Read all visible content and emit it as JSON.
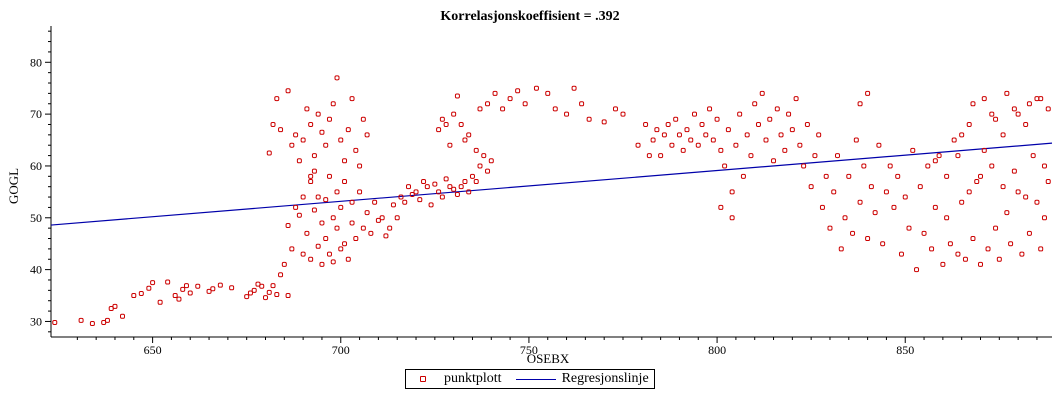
{
  "chart_data": {
    "type": "scatter",
    "title": "Korrelasjonskoeffisient =  .392",
    "xlabel": "OSEBX",
    "ylabel": "GOGL",
    "xlim": [
      623,
      889
    ],
    "ylim": [
      27,
      87
    ],
    "xticks": [
      650,
      700,
      750,
      800,
      850
    ],
    "yticks": [
      30,
      40,
      50,
      60,
      70,
      80
    ],
    "legend": "bottom",
    "colors": {
      "points": "#cc0000",
      "regression": "#0000aa"
    },
    "series": [
      {
        "name": "punktplott",
        "kind": "scatter",
        "points": [
          [
            624,
            29.8
          ],
          [
            631,
            30.2
          ],
          [
            634,
            29.6
          ],
          [
            637,
            29.8
          ],
          [
            638,
            30.2
          ],
          [
            639,
            32.5
          ],
          [
            640,
            32.9
          ],
          [
            642,
            31
          ],
          [
            645,
            35
          ],
          [
            647,
            35.4
          ],
          [
            649,
            36.4
          ],
          [
            650,
            37.5
          ],
          [
            652,
            33.7
          ],
          [
            654,
            37.6
          ],
          [
            656,
            35
          ],
          [
            657,
            34.3
          ],
          [
            658,
            36.2
          ],
          [
            659,
            36.9
          ],
          [
            660,
            35.5
          ],
          [
            662,
            36.8
          ],
          [
            665,
            35.8
          ],
          [
            666,
            36.3
          ],
          [
            668,
            37
          ],
          [
            671,
            36.5
          ],
          [
            675,
            34.8
          ],
          [
            676,
            35.5
          ],
          [
            677,
            36
          ],
          [
            678,
            37.2
          ],
          [
            679,
            36.8
          ],
          [
            680,
            34.6
          ],
          [
            681,
            35.6
          ],
          [
            682,
            36.9
          ],
          [
            683,
            35.2
          ],
          [
            684,
            39
          ],
          [
            685,
            41
          ],
          [
            686,
            35
          ],
          [
            686,
            48.5
          ],
          [
            687,
            44
          ],
          [
            688,
            52
          ],
          [
            689,
            50.5
          ],
          [
            690,
            43
          ],
          [
            690,
            54
          ],
          [
            691,
            47
          ],
          [
            692,
            42
          ],
          [
            692,
            57
          ],
          [
            693,
            51.5
          ],
          [
            693,
            59
          ],
          [
            694,
            54
          ],
          [
            694,
            44.5
          ],
          [
            695,
            49
          ],
          [
            695,
            41
          ],
          [
            696,
            46
          ],
          [
            696,
            53.5
          ],
          [
            697,
            43
          ],
          [
            697,
            58
          ],
          [
            698,
            50
          ],
          [
            698,
            41.5
          ],
          [
            699,
            55
          ],
          [
            699,
            48
          ],
          [
            700,
            44
          ],
          [
            700,
            52
          ],
          [
            701,
            45
          ],
          [
            701,
            57
          ],
          [
            702,
            42
          ],
          [
            703,
            49
          ],
          [
            703,
            53
          ],
          [
            704,
            46
          ],
          [
            705,
            55
          ],
          [
            706,
            48
          ],
          [
            707,
            51
          ],
          [
            708,
            47
          ],
          [
            709,
            53
          ],
          [
            710,
            49.5
          ],
          [
            711,
            50
          ],
          [
            712,
            46.5
          ],
          [
            713,
            48
          ],
          [
            714,
            52.5
          ],
          [
            715,
            50
          ],
          [
            716,
            54
          ],
          [
            717,
            53
          ],
          [
            718,
            56
          ],
          [
            719,
            54.5
          ],
          [
            720,
            55
          ],
          [
            721,
            53.5
          ],
          [
            722,
            57
          ],
          [
            723,
            56
          ],
          [
            724,
            52.5
          ],
          [
            725,
            56.5
          ],
          [
            726,
            55
          ],
          [
            727,
            54
          ],
          [
            728,
            57.5
          ],
          [
            729,
            56
          ],
          [
            730,
            55.5
          ],
          [
            731,
            54.5
          ],
          [
            732,
            56
          ],
          [
            733,
            57
          ],
          [
            734,
            55
          ],
          [
            735,
            58
          ],
          [
            736,
            57
          ],
          [
            737,
            60
          ],
          [
            738,
            62
          ],
          [
            739,
            59
          ],
          [
            740,
            61
          ],
          [
            681,
            62.5
          ],
          [
            682,
            68
          ],
          [
            683,
            73
          ],
          [
            684,
            67
          ],
          [
            686,
            74.5
          ],
          [
            687,
            64
          ],
          [
            688,
            66
          ],
          [
            689,
            61
          ],
          [
            690,
            65
          ],
          [
            691,
            71
          ],
          [
            692,
            58
          ],
          [
            692,
            68
          ],
          [
            693,
            62
          ],
          [
            694,
            70
          ],
          [
            695,
            66.5
          ],
          [
            696,
            64
          ],
          [
            697,
            69
          ],
          [
            698,
            72
          ],
          [
            699,
            77
          ],
          [
            700,
            65
          ],
          [
            701,
            61
          ],
          [
            702,
            67
          ],
          [
            703,
            73
          ],
          [
            704,
            63
          ],
          [
            705,
            60
          ],
          [
            706,
            69
          ],
          [
            707,
            66
          ],
          [
            726,
            67
          ],
          [
            727,
            69
          ],
          [
            728,
            68
          ],
          [
            729,
            64
          ],
          [
            730,
            70
          ],
          [
            731,
            73.5
          ],
          [
            732,
            68
          ],
          [
            733,
            65
          ],
          [
            734,
            66
          ],
          [
            736,
            63
          ],
          [
            737,
            71
          ],
          [
            739,
            72
          ],
          [
            741,
            74
          ],
          [
            743,
            71
          ],
          [
            745,
            73
          ],
          [
            747,
            74.5
          ],
          [
            749,
            72
          ],
          [
            752,
            75
          ],
          [
            755,
            74
          ],
          [
            757,
            71
          ],
          [
            760,
            70
          ],
          [
            762,
            75
          ],
          [
            764,
            72
          ],
          [
            766,
            69
          ],
          [
            770,
            68.5
          ],
          [
            773,
            71
          ],
          [
            775,
            70
          ],
          [
            779,
            64
          ],
          [
            781,
            68
          ],
          [
            782,
            62
          ],
          [
            783,
            65
          ],
          [
            784,
            67
          ],
          [
            785,
            62
          ],
          [
            786,
            66
          ],
          [
            787,
            68
          ],
          [
            788,
            64
          ],
          [
            789,
            69
          ],
          [
            790,
            66
          ],
          [
            791,
            63
          ],
          [
            792,
            67
          ],
          [
            793,
            65
          ],
          [
            794,
            70
          ],
          [
            795,
            64
          ],
          [
            796,
            68
          ],
          [
            797,
            66
          ],
          [
            798,
            71
          ],
          [
            799,
            65
          ],
          [
            800,
            69
          ],
          [
            801,
            63
          ],
          [
            801,
            52
          ],
          [
            802,
            60
          ],
          [
            803,
            67
          ],
          [
            804,
            55
          ],
          [
            804,
            50
          ],
          [
            805,
            64
          ],
          [
            806,
            70
          ],
          [
            807,
            58
          ],
          [
            808,
            66
          ],
          [
            809,
            62
          ],
          [
            810,
            72
          ],
          [
            811,
            68
          ],
          [
            812,
            74
          ],
          [
            813,
            65
          ],
          [
            814,
            69
          ],
          [
            815,
            61
          ],
          [
            816,
            71
          ],
          [
            817,
            66
          ],
          [
            818,
            63
          ],
          [
            819,
            70
          ],
          [
            820,
            67
          ],
          [
            821,
            73
          ],
          [
            822,
            64
          ],
          [
            823,
            60
          ],
          [
            824,
            68
          ],
          [
            825,
            56
          ],
          [
            826,
            62
          ],
          [
            827,
            66
          ],
          [
            828,
            52
          ],
          [
            829,
            58
          ],
          [
            830,
            48
          ],
          [
            831,
            55
          ],
          [
            832,
            62
          ],
          [
            833,
            44
          ],
          [
            834,
            50
          ],
          [
            835,
            58
          ],
          [
            836,
            47
          ],
          [
            837,
            65
          ],
          [
            838,
            53
          ],
          [
            838,
            72
          ],
          [
            839,
            60
          ],
          [
            840,
            46
          ],
          [
            840,
            74
          ],
          [
            841,
            56
          ],
          [
            842,
            51
          ],
          [
            843,
            64
          ],
          [
            844,
            45
          ],
          [
            845,
            55
          ],
          [
            846,
            60
          ],
          [
            847,
            52
          ],
          [
            848,
            58
          ],
          [
            849,
            43
          ],
          [
            850,
            54
          ],
          [
            851,
            48
          ],
          [
            852,
            63
          ],
          [
            853,
            40
          ],
          [
            854,
            56
          ],
          [
            855,
            47
          ],
          [
            856,
            60
          ],
          [
            857,
            44
          ],
          [
            858,
            52
          ],
          [
            859,
            62
          ],
          [
            860,
            41
          ],
          [
            861,
            50
          ],
          [
            862,
            45
          ],
          [
            863,
            65
          ],
          [
            864,
            43
          ],
          [
            865,
            53
          ],
          [
            866,
            42
          ],
          [
            867,
            68
          ],
          [
            868,
            46
          ],
          [
            869,
            57
          ],
          [
            870,
            41
          ],
          [
            871,
            63
          ],
          [
            872,
            44
          ],
          [
            873,
            70
          ],
          [
            874,
            48
          ],
          [
            875,
            42
          ],
          [
            876,
            66
          ],
          [
            877,
            51
          ],
          [
            878,
            45
          ],
          [
            879,
            71
          ],
          [
            880,
            55
          ],
          [
            881,
            43
          ],
          [
            882,
            68
          ],
          [
            883,
            47
          ],
          [
            884,
            62
          ],
          [
            885,
            73
          ],
          [
            886,
            44
          ],
          [
            887,
            60
          ],
          [
            888,
            57
          ],
          [
            865,
            66
          ],
          [
            868,
            72
          ],
          [
            871,
            73
          ],
          [
            874,
            69
          ],
          [
            877,
            74
          ],
          [
            880,
            70
          ],
          [
            883,
            72
          ],
          [
            886,
            73
          ],
          [
            888,
            71
          ],
          [
            858,
            61
          ],
          [
            861,
            58
          ],
          [
            864,
            62
          ],
          [
            867,
            55
          ],
          [
            870,
            58
          ],
          [
            873,
            60
          ],
          [
            876,
            56
          ],
          [
            879,
            59
          ],
          [
            882,
            54
          ],
          [
            885,
            53
          ],
          [
            887,
            50
          ]
        ]
      },
      {
        "name": "Regresjonslinje",
        "kind": "line",
        "points": [
          [
            623,
            48.6
          ],
          [
            889,
            64.4
          ]
        ]
      }
    ]
  }
}
